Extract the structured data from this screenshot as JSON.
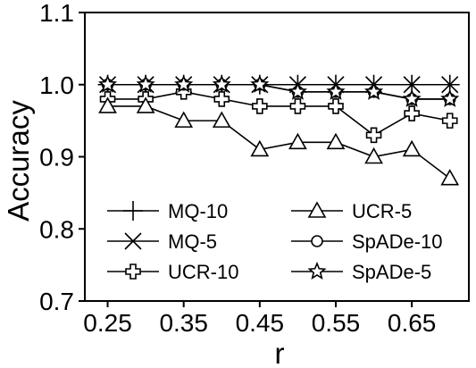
{
  "chart_data": {
    "type": "line",
    "title": "",
    "xlabel": "r",
    "ylabel": "Accuracy",
    "xlim": [
      0.22,
      0.725
    ],
    "ylim": [
      0.7,
      1.1
    ],
    "grid": false,
    "legend_position": "bottom-center",
    "xticks": [
      0.25,
      0.35,
      0.45,
      0.55,
      0.65
    ],
    "xtick_labels": [
      "0.25",
      "0.35",
      "0.45",
      "0.55",
      "0.65"
    ],
    "yticks": [
      0.7,
      0.8,
      0.9,
      1.0,
      1.1
    ],
    "ytick_labels": [
      "0.7",
      "0.8",
      "0.9",
      "1.0",
      "1.1"
    ],
    "x": [
      0.25,
      0.3,
      0.35,
      0.4,
      0.45,
      0.5,
      0.55,
      0.6,
      0.65,
      0.7
    ],
    "series": [
      {
        "name": "MQ-10",
        "marker": "plus",
        "values": [
          1.0,
          1.0,
          1.0,
          1.0,
          1.0,
          1.0,
          1.0,
          1.0,
          1.0,
          1.0
        ]
      },
      {
        "name": "MQ-5",
        "marker": "x",
        "values": [
          1.0,
          1.0,
          1.0,
          1.0,
          1.0,
          1.0,
          1.0,
          1.0,
          1.0,
          1.0
        ]
      },
      {
        "name": "UCR-10",
        "marker": "thick-plus",
        "values": [
          0.98,
          0.98,
          0.99,
          0.98,
          0.97,
          0.97,
          0.97,
          0.93,
          0.96,
          0.95
        ]
      },
      {
        "name": "UCR-5",
        "marker": "triangle",
        "values": [
          0.97,
          0.97,
          0.95,
          0.95,
          0.91,
          0.92,
          0.92,
          0.9,
          0.91,
          0.87
        ]
      },
      {
        "name": "SpADe-10",
        "marker": "circle",
        "values": [
          1.0,
          1.0,
          1.0,
          1.0,
          1.0,
          0.99,
          0.99,
          0.99,
          0.98,
          0.98
        ]
      },
      {
        "name": "SpADe-5",
        "marker": "star",
        "values": [
          1.0,
          1.0,
          1.0,
          1.0,
          1.0,
          0.99,
          0.99,
          0.99,
          0.98,
          0.98
        ]
      }
    ],
    "colors": {
      "line": "#000000",
      "marker_fill": "#ffffff",
      "background": "#ffffff"
    }
  }
}
